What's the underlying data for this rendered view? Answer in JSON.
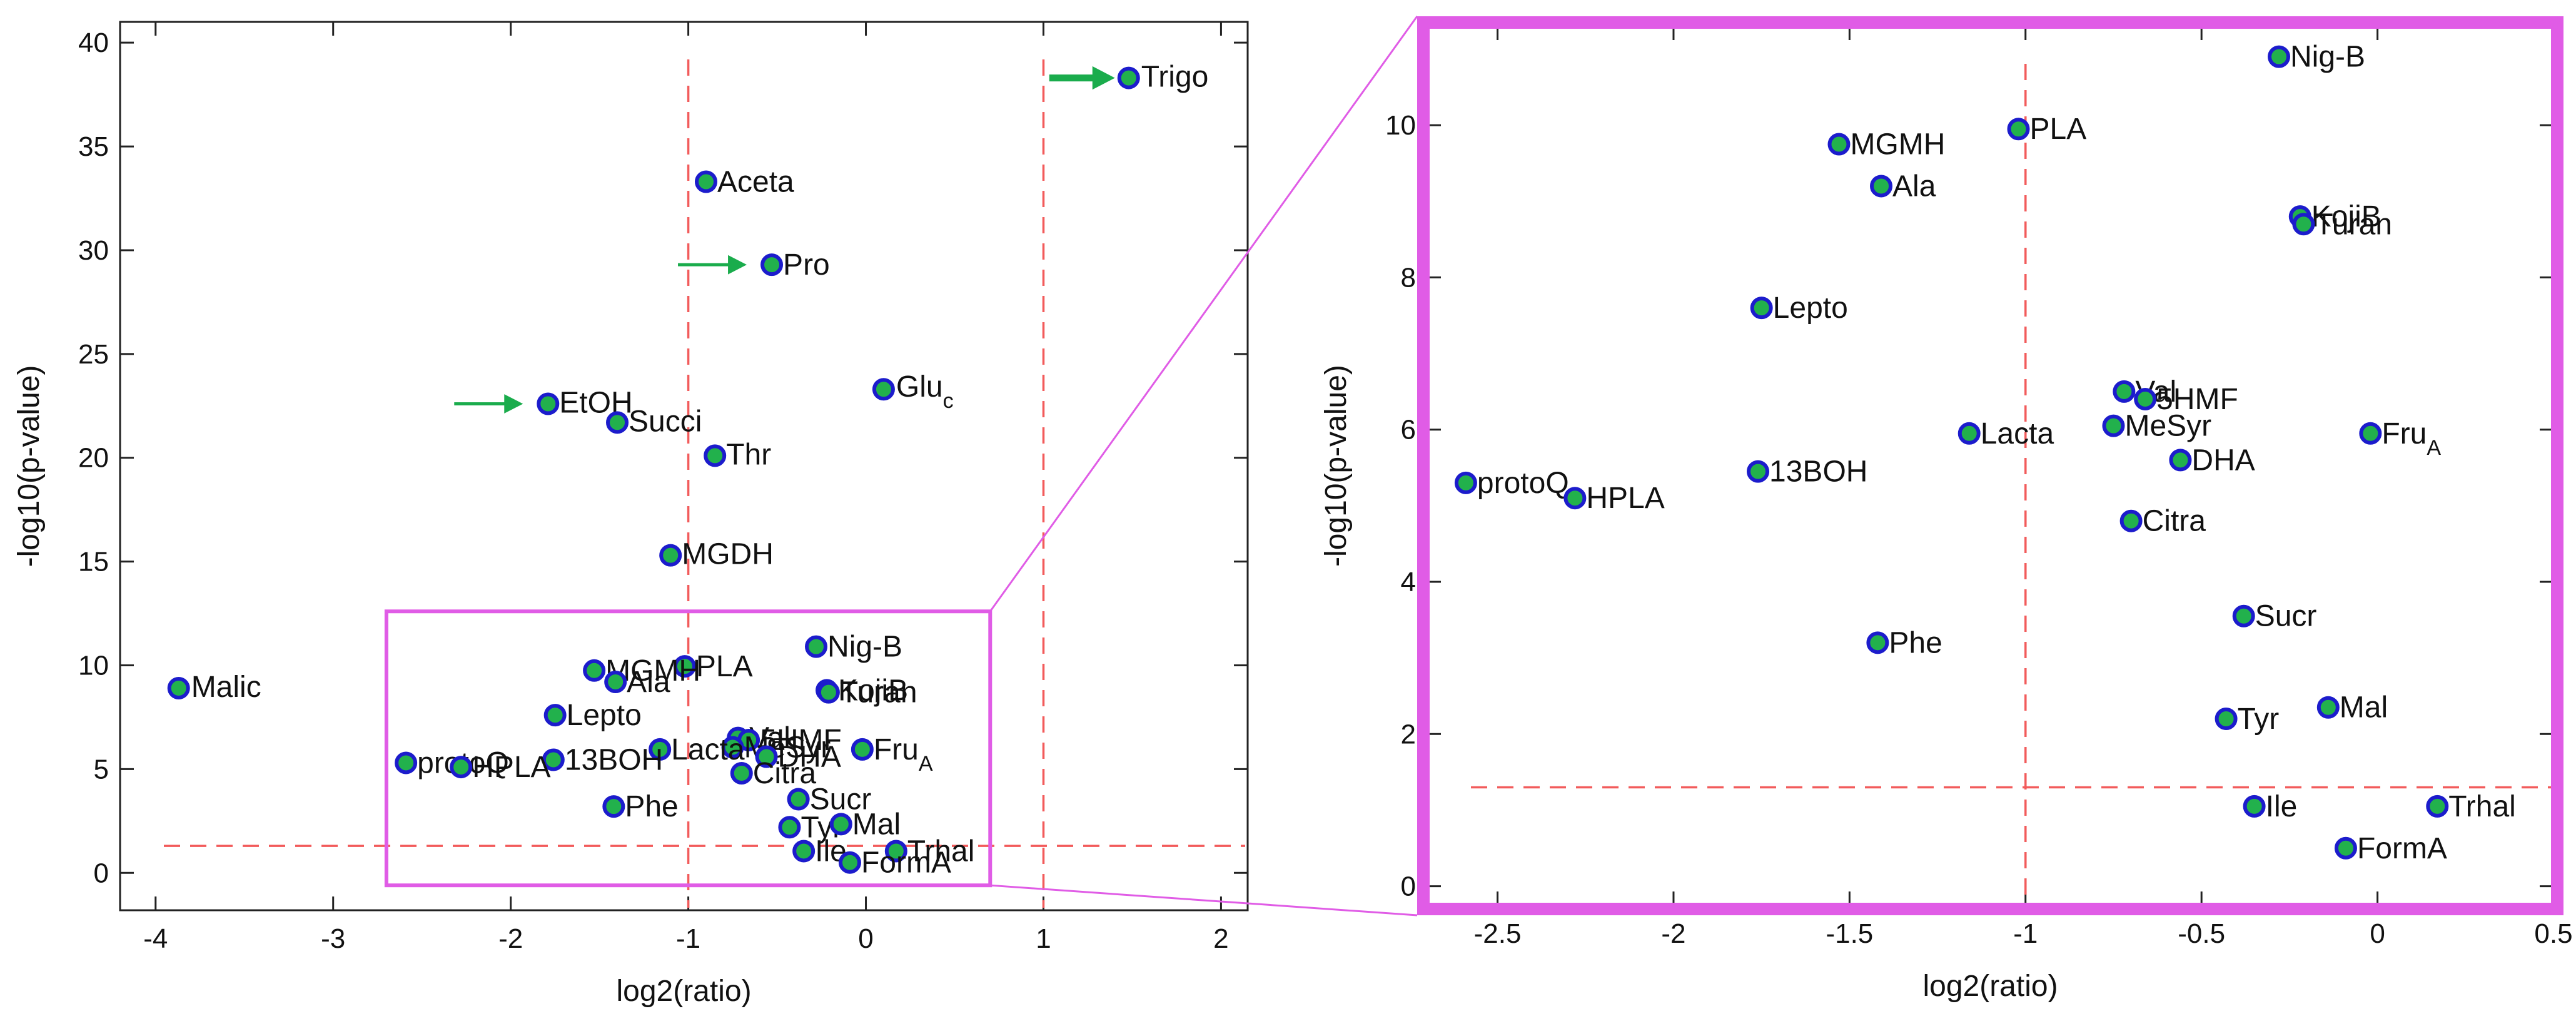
{
  "colors": {
    "marker_fill": "#22b14c",
    "marker_edge": "#1c1ccc",
    "threshold": "#f25b5b",
    "zoom_box": "#e05ce6",
    "arrow": "#1aac4c",
    "axis": "#222222"
  },
  "chart_data": [
    {
      "id": "overview",
      "type": "scatter",
      "title": "",
      "xlabel": "log2(ratio)",
      "ylabel": "-log10(p-value)",
      "xlim": [
        -4.2,
        2.15
      ],
      "ylim": [
        -1.8,
        41
      ],
      "xticks": [
        -4,
        -3,
        -2,
        -1,
        0,
        1,
        2
      ],
      "yticks": [
        0,
        5,
        10,
        15,
        20,
        25,
        30,
        35,
        40
      ],
      "grid": false,
      "thresholds": {
        "x": [
          -1,
          1
        ],
        "y": [
          1.3
        ]
      },
      "zoom_region": {
        "x": [
          -2.7,
          0.7
        ],
        "y": [
          -0.6,
          12.6
        ]
      },
      "arrows_point_to": [
        "Trigo",
        "Pro",
        "EtOH"
      ],
      "points": [
        {
          "label": "Trigo",
          "x": 1.48,
          "y": 38.3
        },
        {
          "label": "Aceta",
          "x": -0.9,
          "y": 33.3
        },
        {
          "label": "Pro",
          "x": -0.53,
          "y": 29.3
        },
        {
          "label": "Glu",
          "sub": "c",
          "x": 0.1,
          "y": 23.3
        },
        {
          "label": "EtOH",
          "x": -1.79,
          "y": 22.6
        },
        {
          "label": "Succi",
          "x": -1.4,
          "y": 21.7
        },
        {
          "label": "Thr",
          "x": -0.85,
          "y": 20.1
        },
        {
          "label": "MGDH",
          "x": -1.1,
          "y": 15.3
        },
        {
          "label": "Malic",
          "x": -3.87,
          "y": 8.9
        },
        {
          "label": "Nig-B",
          "x": -0.28,
          "y": 10.9
        },
        {
          "label": "PLA",
          "x": -1.02,
          "y": 9.95
        },
        {
          "label": "MGMH",
          "x": -1.53,
          "y": 9.75
        },
        {
          "label": "Ala",
          "x": -1.41,
          "y": 9.2
        },
        {
          "label": "KojiB",
          "x": -0.22,
          "y": 8.8
        },
        {
          "label": "Turan",
          "x": -0.21,
          "y": 8.7
        },
        {
          "label": "Lepto",
          "x": -1.75,
          "y": 7.6
        },
        {
          "label": "Val",
          "x": -0.72,
          "y": 6.5
        },
        {
          "label": "5HMF",
          "x": -0.66,
          "y": 6.4
        },
        {
          "label": "MeSyr",
          "x": -0.75,
          "y": 6.05
        },
        {
          "label": "DHA",
          "x": -0.56,
          "y": 5.6
        },
        {
          "label": "Lacta",
          "x": -1.16,
          "y": 5.95
        },
        {
          "label": "Fru",
          "sub": "A",
          "x": -0.02,
          "y": 5.95
        },
        {
          "label": "13BOH",
          "x": -1.76,
          "y": 5.45
        },
        {
          "label": "protoQ",
          "x": -2.59,
          "y": 5.3
        },
        {
          "label": "HPLA",
          "x": -2.28,
          "y": 5.1
        },
        {
          "label": "Citra",
          "x": -0.7,
          "y": 4.8
        },
        {
          "label": "Sucr",
          "x": -0.38,
          "y": 3.55
        },
        {
          "label": "Phe",
          "x": -1.42,
          "y": 3.2
        },
        {
          "label": "Tyr",
          "x": -0.43,
          "y": 2.2
        },
        {
          "label": "Mal",
          "x": -0.14,
          "y": 2.35
        },
        {
          "label": "Ile",
          "x": -0.35,
          "y": 1.05
        },
        {
          "label": "Trhal",
          "x": 0.17,
          "y": 1.05
        },
        {
          "label": "FormA",
          "x": -0.09,
          "y": 0.5
        }
      ]
    },
    {
      "id": "zoom",
      "type": "scatter",
      "title": "",
      "xlabel": "log2(ratio)",
      "ylabel": "-log10(p-value)",
      "xlim": [
        -2.7,
        0.5
      ],
      "ylim": [
        -0.25,
        11.3
      ],
      "xticks": [
        -2.5,
        -2,
        -1.5,
        -1,
        -0.5,
        0,
        0.5
      ],
      "yticks": [
        0,
        2,
        4,
        6,
        8,
        10
      ],
      "grid": false,
      "thresholds": {
        "x": [
          -1
        ],
        "y": [
          1.3
        ]
      },
      "points": [
        {
          "label": "Nig-B",
          "x": -0.28,
          "y": 10.9
        },
        {
          "label": "PLA",
          "x": -1.02,
          "y": 9.95
        },
        {
          "label": "MGMH",
          "x": -1.53,
          "y": 9.75
        },
        {
          "label": "Ala",
          "x": -1.41,
          "y": 9.2
        },
        {
          "label": "KojiB",
          "x": -0.22,
          "y": 8.8
        },
        {
          "label": "Turan",
          "x": -0.21,
          "y": 8.7
        },
        {
          "label": "Lepto",
          "x": -1.75,
          "y": 7.6
        },
        {
          "label": "Val",
          "x": -0.72,
          "y": 6.5
        },
        {
          "label": "5HMF",
          "x": -0.66,
          "y": 6.4
        },
        {
          "label": "MeSyr",
          "x": -0.75,
          "y": 6.05
        },
        {
          "label": "Lacta",
          "x": -1.16,
          "y": 5.95
        },
        {
          "label": "Fru",
          "sub": "A",
          "x": -0.02,
          "y": 5.95
        },
        {
          "label": "DHA",
          "x": -0.56,
          "y": 5.6
        },
        {
          "label": "13BOH",
          "x": -1.76,
          "y": 5.45
        },
        {
          "label": "protoQ",
          "x": -2.59,
          "y": 5.3
        },
        {
          "label": "HPLA",
          "x": -2.28,
          "y": 5.1
        },
        {
          "label": "Citra",
          "x": -0.7,
          "y": 4.8
        },
        {
          "label": "Sucr",
          "x": -0.38,
          "y": 3.55
        },
        {
          "label": "Phe",
          "x": -1.42,
          "y": 3.2
        },
        {
          "label": "Mal",
          "x": -0.14,
          "y": 2.35
        },
        {
          "label": "Tyr",
          "x": -0.43,
          "y": 2.2
        },
        {
          "label": "Ile",
          "x": -0.35,
          "y": 1.05
        },
        {
          "label": "Trhal",
          "x": 0.17,
          "y": 1.05
        },
        {
          "label": "FormA",
          "x": -0.09,
          "y": 0.5
        }
      ]
    }
  ]
}
